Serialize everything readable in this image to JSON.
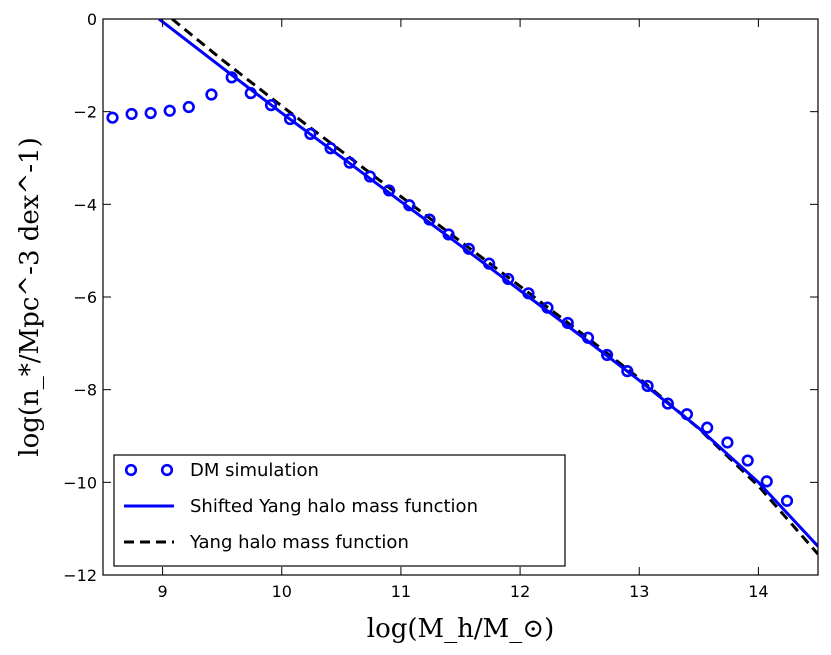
{
  "chart_data": {
    "type": "line",
    "title": "",
    "xlabel": "log(M_h/M_⊙)",
    "ylabel": "log(n_*/Mpc^-3 dex^-1)",
    "xlim": [
      8.5,
      14.5
    ],
    "ylim": [
      -12,
      0
    ],
    "x_ticks": [
      9,
      10,
      11,
      12,
      13,
      14
    ],
    "x_tick_labels": [
      "9",
      "10",
      "11",
      "12",
      "13",
      "14"
    ],
    "y_ticks": [
      0,
      -2,
      -4,
      -6,
      -8,
      -10,
      -12
    ],
    "y_tick_labels": [
      "0",
      "−2",
      "−4",
      "−6",
      "−8",
      "−10",
      "−12"
    ],
    "legend_position": "bottom-left",
    "series": [
      {
        "name": "DM simulation",
        "style": "markers",
        "color": "#0000ff",
        "x": [
          8.58,
          8.74,
          8.9,
          9.06,
          9.22,
          9.41,
          9.58,
          9.74,
          9.91,
          10.07,
          10.24,
          10.41,
          10.57,
          10.74,
          10.9,
          11.07,
          11.24,
          11.4,
          11.57,
          11.74,
          11.9,
          12.07,
          12.23,
          12.4,
          12.57,
          12.73,
          12.9,
          13.07,
          13.24,
          13.4,
          13.57,
          13.74,
          13.91,
          14.07,
          14.24
        ],
        "y": [
          -2.13,
          -2.05,
          -2.03,
          -1.98,
          -1.9,
          -1.63,
          -1.26,
          -1.6,
          -1.86,
          -2.16,
          -2.48,
          -2.79,
          -3.1,
          -3.4,
          -3.7,
          -4.02,
          -4.33,
          -4.65,
          -4.96,
          -5.28,
          -5.61,
          -5.92,
          -6.23,
          -6.56,
          -6.88,
          -7.25,
          -7.6,
          -7.92,
          -8.3,
          -8.53,
          -8.82,
          -9.14,
          -9.53,
          -9.98,
          -10.4
        ]
      },
      {
        "name": "Shifted Yang halo mass function",
        "style": "solid",
        "color": "#0000ff",
        "x": [
          8.97,
          9.5,
          10.0,
          10.5,
          11.0,
          11.5,
          12.0,
          12.5,
          13.0,
          13.5,
          14.0,
          14.5
        ],
        "y": [
          0,
          -1.05,
          -2.03,
          -2.98,
          -3.94,
          -4.89,
          -5.86,
          -6.82,
          -7.8,
          -8.83,
          -10.0,
          -11.38
        ]
      },
      {
        "name": "Yang halo mass function",
        "style": "dashed",
        "color": "#000000",
        "x": [
          9.08,
          9.5,
          10.0,
          10.5,
          11.0,
          11.5,
          12.0,
          12.5,
          13.0,
          13.5,
          14.0,
          14.5
        ],
        "y": [
          0,
          -0.88,
          -1.88,
          -2.85,
          -3.83,
          -4.8,
          -5.77,
          -6.75,
          -7.76,
          -8.84,
          -10.08,
          -11.55
        ]
      }
    ]
  }
}
